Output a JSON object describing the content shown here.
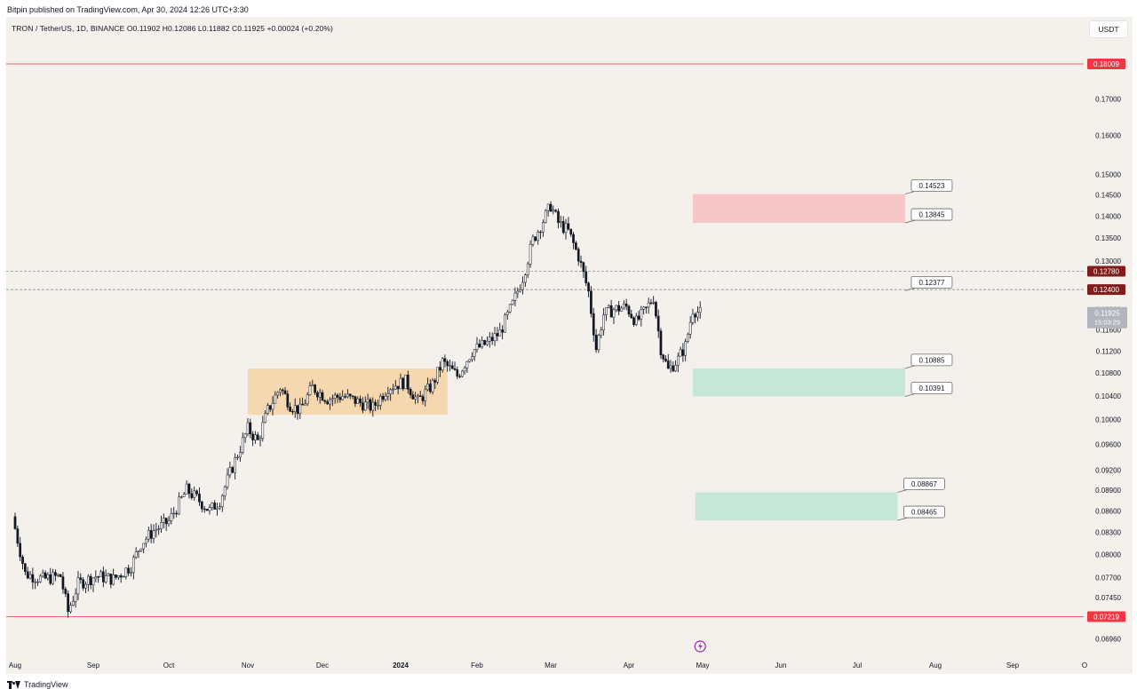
{
  "header": {
    "publisher": "Bitpin published on TradingView.com, Apr 30, 2024 12:26 UTC+3:30"
  },
  "legend": {
    "symbol": "TRON / TetherUS, 1D, BINANCE",
    "ohlc": "O0.11902 H0.12086 L0.11882 C0.11925 +0.00024 (+0.20%)"
  },
  "currency_button": "USDT",
  "footer": {
    "brand": "TradingView"
  },
  "colors": {
    "background": "#f4f0ec",
    "candle": "#131722",
    "red_line": "#f23645",
    "supply_zone": "#f7c6c6",
    "demand_zone": "#c6e6da",
    "range_box": "#f5d7b0",
    "dark_badge": "#7f1d1d"
  },
  "chart_data": {
    "type": "candlestick",
    "instrument": "TRON / TetherUS",
    "timeframe": "1D",
    "exchange": "BINANCE",
    "last_price": 0.11925,
    "countdown": "15:03:29",
    "scale": "log",
    "y_ticks": [
      0.17,
      0.16,
      0.15,
      0.145,
      0.14,
      0.135,
      0.13,
      0.12,
      0.116,
      0.112,
      0.108,
      0.104,
      0.1,
      0.096,
      0.092,
      0.089,
      0.086,
      0.083,
      0.08,
      0.077,
      0.0745,
      0.0696
    ],
    "y_tick_labels": [
      "0.17000",
      "0.16000",
      "0.15000",
      "0.14500",
      "0.14000",
      "0.13500",
      "0.13000",
      "0.12000",
      "0.11600",
      "0.11200",
      "0.10800",
      "0.10400",
      "0.10000",
      "0.09600",
      "0.09200",
      "0.08900",
      "0.08600",
      "0.08300",
      "0.08000",
      "0.07700",
      "0.07450",
      "0.06960"
    ],
    "x_ticks": [
      {
        "label": "Aug",
        "date": "2023-08-01",
        "bold": false
      },
      {
        "label": "Sep",
        "date": "2023-09-01",
        "bold": false
      },
      {
        "label": "Oct",
        "date": "2023-10-01",
        "bold": false
      },
      {
        "label": "Nov",
        "date": "2023-11-01",
        "bold": false
      },
      {
        "label": "Dec",
        "date": "2023-12-01",
        "bold": false
      },
      {
        "label": "2024",
        "date": "2024-01-01",
        "bold": true
      },
      {
        "label": "Feb",
        "date": "2024-02-01",
        "bold": false
      },
      {
        "label": "Mar",
        "date": "2024-03-01",
        "bold": false
      },
      {
        "label": "Apr",
        "date": "2024-04-01",
        "bold": false
      },
      {
        "label": "May",
        "date": "2024-05-01",
        "bold": false
      },
      {
        "label": "Jun",
        "date": "2024-06-01",
        "bold": false
      },
      {
        "label": "Jul",
        "date": "2024-07-01",
        "bold": false
      },
      {
        "label": "Aug",
        "date": "2024-08-01",
        "bold": false
      },
      {
        "label": "Sep",
        "date": "2024-09-01",
        "bold": false
      },
      {
        "label": "O",
        "date": "2024-10-01",
        "bold": false
      }
    ],
    "horizontal_lines": [
      {
        "price": 0.18009,
        "label": "0.18009",
        "style": "solid",
        "color": "#f23645",
        "badge": "#f23645"
      },
      {
        "price": 0.1278,
        "label": "0.12780",
        "style": "dashed",
        "color": "#7f7f7f",
        "badge": "#7f1d1d"
      },
      {
        "price": 0.124,
        "label": "0.12400",
        "style": "dashed",
        "color": "#7f7f7f",
        "badge": "#7f1d1d"
      },
      {
        "price": 0.07219,
        "label": "0.07219",
        "style": "solid",
        "color": "#f23645",
        "badge": "#f23645"
      }
    ],
    "zones": [
      {
        "kind": "range",
        "start": "2023-11-01",
        "end": "2024-01-20",
        "top": 0.1088,
        "bottom": 0.1008,
        "color": "#f5d7b0"
      },
      {
        "kind": "supply",
        "start": "2024-04-27",
        "end": "2024-07-20",
        "top": 0.14523,
        "bottom": 0.13845,
        "color": "#f7c6c6"
      },
      {
        "kind": "demand",
        "start": "2024-04-27",
        "end": "2024-07-20",
        "top": 0.10885,
        "bottom": 0.10391,
        "color": "#c6e6da"
      },
      {
        "kind": "demand",
        "start": "2024-04-28",
        "end": "2024-07-17",
        "top": 0.08867,
        "bottom": 0.08465,
        "color": "#c6e6da"
      }
    ],
    "callouts": [
      {
        "label": "0.14523",
        "price": 0.14523,
        "date": "2024-07-20"
      },
      {
        "label": "0.13845",
        "price": 0.13845,
        "date": "2024-07-20"
      },
      {
        "label": "0.12377",
        "price": 0.12377,
        "date": "2024-07-20"
      },
      {
        "label": "0.10885",
        "price": 0.10885,
        "date": "2024-07-20"
      },
      {
        "label": "0.10391",
        "price": 0.10391,
        "date": "2024-07-20"
      },
      {
        "label": "0.08867",
        "price": 0.08867,
        "date": "2024-07-17"
      },
      {
        "label": "0.08465",
        "price": 0.08465,
        "date": "2024-07-17"
      }
    ],
    "price_path": [
      {
        "date": "2023-08-01",
        "close": 0.0835
      },
      {
        "date": "2023-08-05",
        "close": 0.0775
      },
      {
        "date": "2023-08-12",
        "close": 0.0768
      },
      {
        "date": "2023-08-19",
        "close": 0.0772
      },
      {
        "date": "2023-08-22",
        "close": 0.0728
      },
      {
        "date": "2023-08-26",
        "close": 0.0762
      },
      {
        "date": "2023-09-02",
        "close": 0.0772
      },
      {
        "date": "2023-09-09",
        "close": 0.0768
      },
      {
        "date": "2023-09-16",
        "close": 0.0785
      },
      {
        "date": "2023-09-20",
        "close": 0.0815
      },
      {
        "date": "2023-09-25",
        "close": 0.0832
      },
      {
        "date": "2023-10-01",
        "close": 0.0845
      },
      {
        "date": "2023-10-08",
        "close": 0.089
      },
      {
        "date": "2023-10-12",
        "close": 0.0878
      },
      {
        "date": "2023-10-17",
        "close": 0.086
      },
      {
        "date": "2023-10-21",
        "close": 0.0875
      },
      {
        "date": "2023-10-25",
        "close": 0.0915
      },
      {
        "date": "2023-11-01",
        "close": 0.0985
      },
      {
        "date": "2023-11-05",
        "close": 0.0965
      },
      {
        "date": "2023-11-09",
        "close": 0.1015
      },
      {
        "date": "2023-11-14",
        "close": 0.1055
      },
      {
        "date": "2023-11-18",
        "close": 0.1025
      },
      {
        "date": "2023-11-22",
        "close": 0.1015
      },
      {
        "date": "2023-11-27",
        "close": 0.1055
      },
      {
        "date": "2023-12-03",
        "close": 0.1035
      },
      {
        "date": "2023-12-09",
        "close": 0.104
      },
      {
        "date": "2023-12-15",
        "close": 0.103
      },
      {
        "date": "2023-12-21",
        "close": 0.102
      },
      {
        "date": "2023-12-27",
        "close": 0.1055
      },
      {
        "date": "2024-01-03",
        "close": 0.1065
      },
      {
        "date": "2024-01-08",
        "close": 0.103
      },
      {
        "date": "2024-01-14",
        "close": 0.106
      },
      {
        "date": "2024-01-18",
        "close": 0.11
      },
      {
        "date": "2024-01-24",
        "close": 0.1075
      },
      {
        "date": "2024-01-30",
        "close": 0.112
      },
      {
        "date": "2024-02-05",
        "close": 0.1135
      },
      {
        "date": "2024-02-10",
        "close": 0.1155
      },
      {
        "date": "2024-02-15",
        "close": 0.121
      },
      {
        "date": "2024-02-19",
        "close": 0.1265
      },
      {
        "date": "2024-02-23",
        "close": 0.1345
      },
      {
        "date": "2024-02-27",
        "close": 0.139
      },
      {
        "date": "2024-03-01",
        "close": 0.1425
      },
      {
        "date": "2024-03-04",
        "close": 0.1385
      },
      {
        "date": "2024-03-08",
        "close": 0.1365
      },
      {
        "date": "2024-03-12",
        "close": 0.131
      },
      {
        "date": "2024-03-16",
        "close": 0.1235
      },
      {
        "date": "2024-03-19",
        "close": 0.1125
      },
      {
        "date": "2024-03-22",
        "close": 0.119
      },
      {
        "date": "2024-03-26",
        "close": 0.12
      },
      {
        "date": "2024-03-31",
        "close": 0.1205
      },
      {
        "date": "2024-04-04",
        "close": 0.1175
      },
      {
        "date": "2024-04-08",
        "close": 0.12
      },
      {
        "date": "2024-04-11",
        "close": 0.1225
      },
      {
        "date": "2024-04-14",
        "close": 0.1125
      },
      {
        "date": "2024-04-17",
        "close": 0.1085
      },
      {
        "date": "2024-04-21",
        "close": 0.1105
      },
      {
        "date": "2024-04-24",
        "close": 0.113
      },
      {
        "date": "2024-04-27",
        "close": 0.12
      },
      {
        "date": "2024-04-30",
        "close": 0.11925
      }
    ]
  }
}
